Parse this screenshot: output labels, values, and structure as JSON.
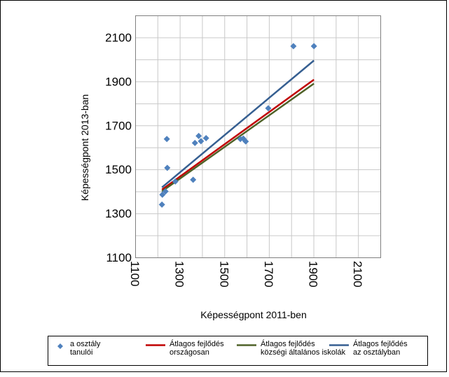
{
  "chart_data": {
    "type": "scatter",
    "title": "",
    "xlabel": "Képességpont 2011-ben",
    "ylabel": "Képességpont 2013-ban",
    "xlim": [
      1100,
      2200
    ],
    "ylim": [
      1100,
      2200
    ],
    "xticks": [
      1100,
      1300,
      1500,
      1700,
      1900,
      2100
    ],
    "yticks": [
      1100,
      1300,
      1500,
      1700,
      1900,
      2100
    ],
    "grid": true,
    "legend_position": "bottom",
    "x_tick_rotation": 90,
    "series": [
      {
        "name": "a osztály tanulói",
        "kind": "points",
        "marker": "diamond",
        "color": "#4F81BD",
        "points": [
          [
            1220,
            1340
          ],
          [
            1222,
            1385
          ],
          [
            1236,
            1400
          ],
          [
            1242,
            1638
          ],
          [
            1244,
            1507
          ],
          [
            1280,
            1445
          ],
          [
            1360,
            1453
          ],
          [
            1368,
            1620
          ],
          [
            1385,
            1652
          ],
          [
            1395,
            1628
          ],
          [
            1418,
            1642
          ],
          [
            1572,
            1638
          ],
          [
            1585,
            1640
          ],
          [
            1596,
            1627
          ],
          [
            1697,
            1778
          ],
          [
            1810,
            2060
          ],
          [
            1902,
            2060
          ]
        ]
      },
      {
        "name": "Átlagos fejlődés országosan",
        "kind": "line",
        "color": "#C00000",
        "points": [
          [
            1220,
            1408
          ],
          [
            1902,
            1908
          ]
        ]
      },
      {
        "name": "Átlagos fejlődés községi általános iskolák",
        "kind": "line",
        "color": "#4F6228",
        "points": [
          [
            1220,
            1400
          ],
          [
            1902,
            1890
          ]
        ]
      },
      {
        "name": "Átlagos fejlődés az osztályban",
        "kind": "line",
        "color": "#365F91",
        "points": [
          [
            1220,
            1418
          ],
          [
            1902,
            1995
          ]
        ]
      }
    ],
    "legend": [
      {
        "label_lines": [
          "a osztály",
          "tanulói"
        ],
        "color": "#4F81BD",
        "symbol": "diamond"
      },
      {
        "label_lines": [
          "Átlagos fejlődés",
          "országosan"
        ],
        "color": "#C00000",
        "symbol": "line"
      },
      {
        "label_lines": [
          "Átlagos fejlődés",
          "községi általános iskolák"
        ],
        "color": "#4F6228",
        "symbol": "line"
      },
      {
        "label_lines": [
          "Átlagos fejlődés",
          "az osztályban"
        ],
        "color": "#365F91",
        "symbol": "line"
      }
    ]
  }
}
